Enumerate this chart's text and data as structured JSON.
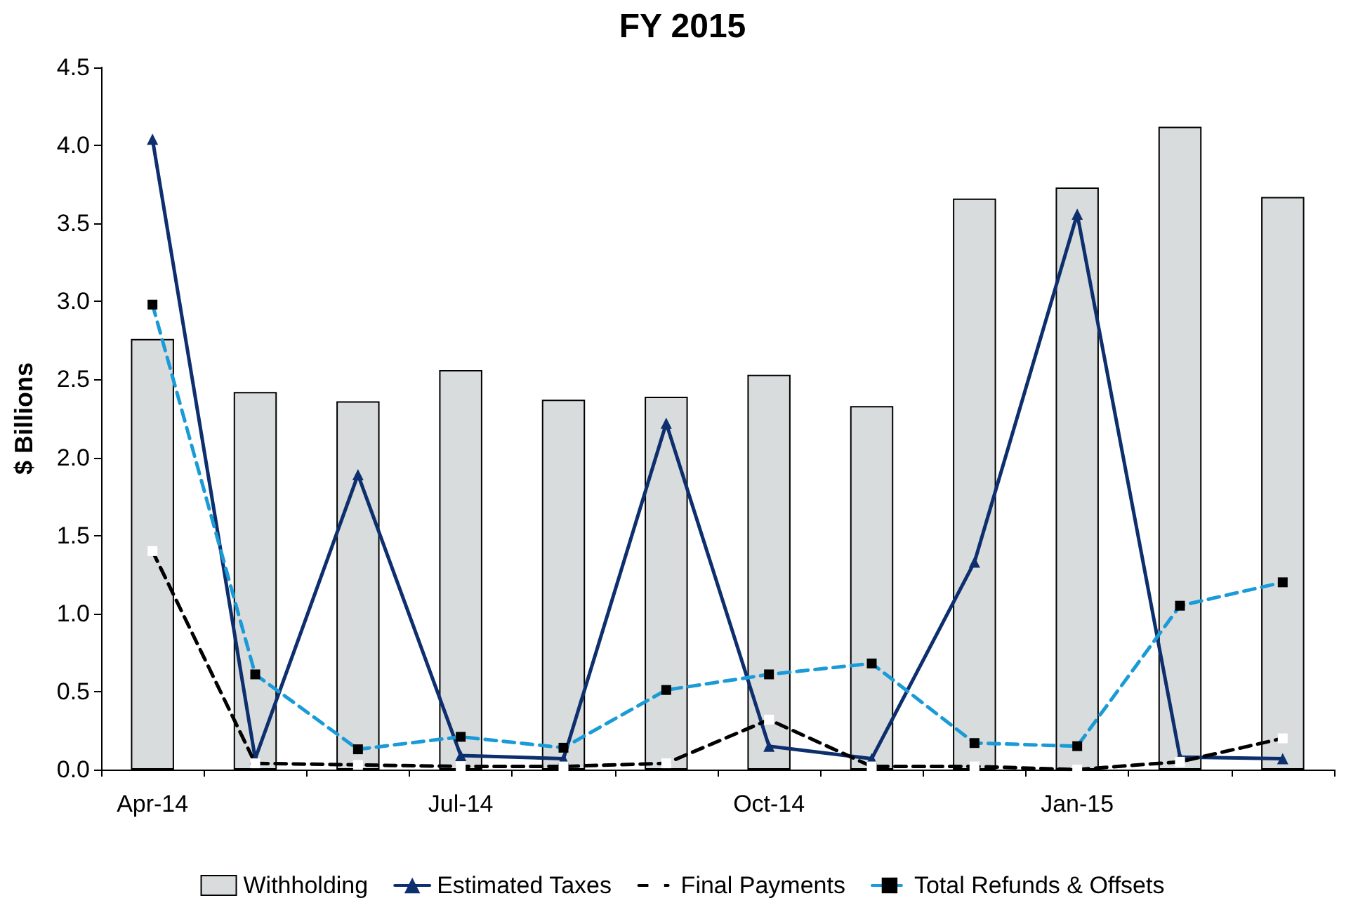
{
  "chart_data": {
    "type": "bar",
    "title": "FY 2015",
    "ylabel": "$ Billions",
    "categories": [
      "Apr-14",
      null,
      null,
      "Jul-14",
      null,
      null,
      "Oct-14",
      null,
      null,
      "Jan-15",
      null,
      null
    ],
    "series": [
      {
        "name": "Withholding",
        "color": "#d9dcdd",
        "values": [
          2.76,
          2.42,
          2.36,
          2.56,
          2.37,
          2.39,
          2.53,
          2.33,
          3.66,
          3.73,
          4.12,
          3.67
        ]
      },
      {
        "name": "Estimated Taxes",
        "type": "line",
        "color": "#0d2f6e",
        "marker": "triangle",
        "line_style": "solid",
        "values": [
          4.04,
          0.07,
          1.89,
          0.09,
          0.07,
          2.22,
          0.15,
          0.07,
          1.33,
          3.56,
          0.08,
          0.07
        ]
      },
      {
        "name": "Final Payments",
        "type": "line",
        "color": "#000000",
        "marker": "square",
        "line_style": "dashed",
        "values": [
          1.4,
          0.04,
          0.03,
          0.02,
          0.02,
          0.04,
          0.32,
          0.02,
          0.02,
          0.0,
          0.05,
          0.2
        ]
      },
      {
        "name": "Total Refunds & Offsets",
        "type": "line",
        "color": "#1a9bd7",
        "marker": "square",
        "line_style": "dashed",
        "values": [
          2.98,
          0.61,
          0.13,
          0.21,
          0.14,
          0.51,
          0.61,
          0.68,
          0.17,
          0.15,
          1.05,
          1.2
        ]
      }
    ],
    "ylim": [
      0,
      4.5
    ],
    "yticks": [
      {
        "value": 0,
        "label": "0.0"
      },
      {
        "value": 0.5,
        "label": "0.5"
      },
      {
        "value": 1,
        "label": "1.0"
      },
      {
        "value": 1.5,
        "label": "1.5"
      },
      {
        "value": 2,
        "label": "2.0"
      },
      {
        "value": 2.5,
        "label": "2.5"
      },
      {
        "value": 3,
        "label": "3.0"
      },
      {
        "value": 3.5,
        "label": "3.5"
      },
      {
        "value": 4,
        "label": "4.0"
      },
      {
        "value": 4.5,
        "label": "4.5"
      }
    ],
    "grid": false,
    "legend": "bottom"
  }
}
